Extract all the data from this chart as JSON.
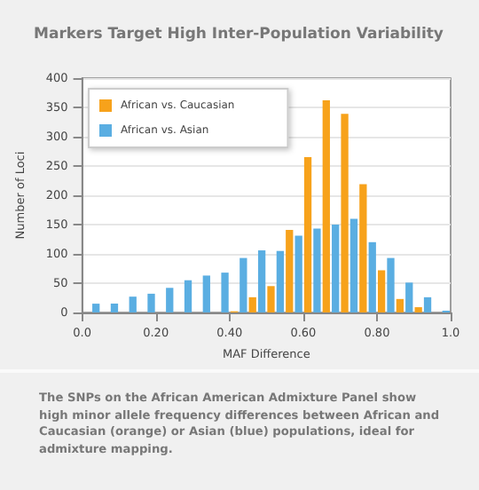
{
  "chart_data": {
    "type": "histogram",
    "title": "Markers Target High Inter-Population Variability",
    "xlabel": "MAF Difference",
    "ylabel": "Number of Loci",
    "bins": [
      0,
      0.05,
      0.1,
      0.15,
      0.2,
      0.25,
      0.3,
      0.35,
      0.4,
      0.45,
      0.5,
      0.55,
      0.6,
      0.65,
      0.7,
      0.75,
      0.8,
      0.85,
      0.9,
      0.95,
      1.0
    ],
    "series": [
      {
        "name": "African vs. Caucasian",
        "color": "#f7a21b",
        "values": [
          0,
          0,
          0,
          0,
          0,
          0,
          0,
          0,
          2,
          26,
          45,
          141,
          265,
          362,
          339,
          219,
          72,
          23,
          9,
          0
        ]
      },
      {
        "name": "African vs. Asian",
        "color": "#5aaee2",
        "values": [
          15,
          15,
          27,
          32,
          42,
          55,
          63,
          68,
          93,
          106,
          105,
          131,
          143,
          150,
          160,
          120,
          93,
          51,
          26,
          3
        ]
      }
    ],
    "xlim": [
      0,
      1.0
    ],
    "xticks": [
      {
        "value": 0,
        "label": "0.0"
      },
      {
        "value": 0.2,
        "label": "0.20"
      },
      {
        "value": 0.4,
        "label": "0.40"
      },
      {
        "value": 0.6,
        "label": "0.60"
      },
      {
        "value": 0.8,
        "label": "0.80"
      },
      {
        "value": 1.0,
        "label": "1.0"
      }
    ],
    "ylim": [
      0,
      400
    ],
    "yticks": [
      0,
      50,
      100,
      150,
      200,
      250,
      300,
      350,
      400
    ],
    "grid": "y",
    "legend": "top left",
    "annotations": [
      "The SNPs on the African American Admixture Panel show high minor allele frequency differences between African and Caucasian (orange) or Asian (blue) populations, ideal for admixture mapping."
    ]
  }
}
